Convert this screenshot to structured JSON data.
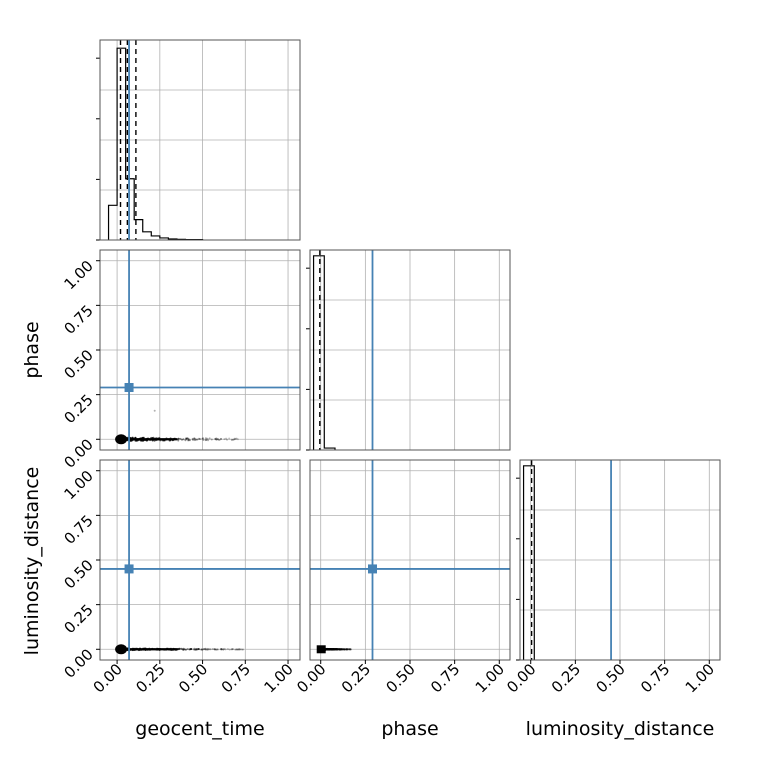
{
  "chart_data": {
    "type": "corner",
    "parameters": [
      "geocent_time",
      "phase",
      "luminosity_distance"
    ],
    "axis_labels": {
      "x": [
        "geocent_time",
        "phase",
        "luminosity_distance"
      ],
      "y": [
        "phase",
        "luminosity_distance"
      ]
    },
    "ranges": [
      [
        -0.1,
        1.07
      ],
      [
        -0.06,
        1.06
      ],
      [
        -0.06,
        1.06
      ]
    ],
    "ticks": [
      0.0,
      0.25,
      0.5,
      0.75,
      1.0
    ],
    "tick_labels": [
      "0.00",
      "0.25",
      "0.50",
      "0.75",
      "1.00"
    ],
    "grid": true,
    "truths": [
      0.07,
      0.29,
      0.45
    ],
    "truth_color": "#4682b4",
    "histogram_color": "#000000",
    "quantile_lines": [
      [
        0.02,
        0.06,
        0.11
      ],
      [
        -0.005
      ],
      [
        0.005
      ]
    ],
    "marginals": [
      {
        "parameter": "geocent_time",
        "bin_edges": [
          -0.05,
          0.0,
          0.05,
          0.1,
          0.15,
          0.2,
          0.25,
          0.3,
          0.35,
          0.4,
          0.5
        ],
        "counts": [
          0.17,
          0.94,
          0.3,
          0.1,
          0.04,
          0.02,
          0.01,
          0.005,
          0.003,
          0.002
        ],
        "ylim": [
          0,
          0.98
        ]
      },
      {
        "parameter": "phase",
        "bin_edges": [
          -0.04,
          0.02,
          0.08
        ],
        "counts": [
          1.0,
          0.01
        ],
        "ylim": [
          0,
          1.03
        ]
      },
      {
        "parameter": "luminosity_distance",
        "bin_edges": [
          -0.04,
          0.02
        ],
        "counts": [
          1.0
        ],
        "ylim": [
          0,
          1.03
        ]
      }
    ],
    "scatter_panels": [
      {
        "x": "geocent_time",
        "y": "phase",
        "core": [
          0.0,
          0.0
        ],
        "tail_x": [
          0.02,
          0.75
        ],
        "spread_y": 0.02,
        "outlier": [
          0.22,
          0.16
        ]
      },
      {
        "x": "geocent_time",
        "y": "luminosity_distance",
        "core": [
          0.0,
          0.0
        ],
        "tail_x": [
          0.02,
          0.75
        ],
        "spread_y": 0.01
      },
      {
        "x": "phase",
        "y": "luminosity_distance",
        "core": [
          0.0,
          0.0
        ],
        "tail_x": [
          0.02,
          0.17
        ],
        "spread_y": 0.005
      }
    ]
  }
}
